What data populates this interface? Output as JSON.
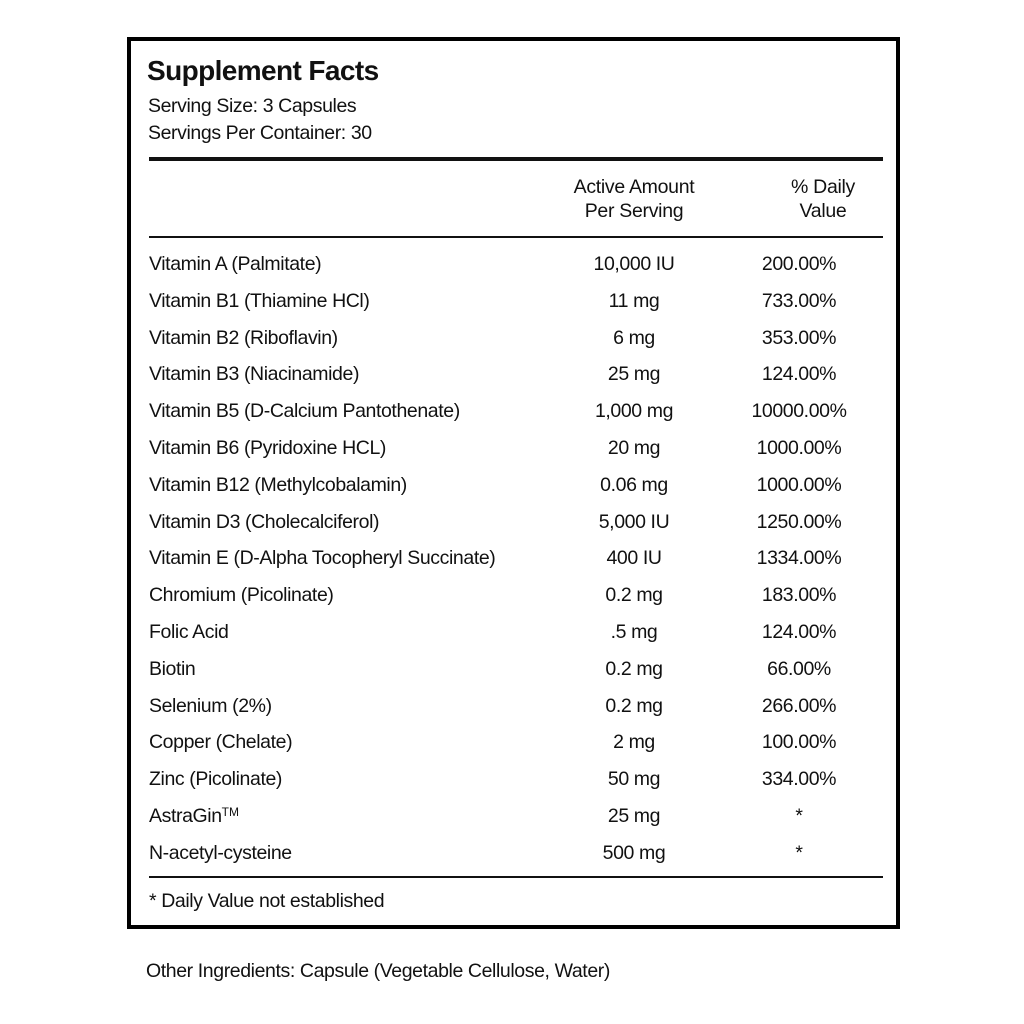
{
  "label": {
    "title": "Supplement Facts",
    "serving_size": "Serving Size:  3 Capsules",
    "servings_per_container": "Servings Per Container:  30",
    "columns": {
      "amount_line1": "Active Amount",
      "amount_line2": "Per Serving",
      "dv_line1": "% Daily",
      "dv_line2": "Value"
    },
    "rows": [
      {
        "name": "Vitamin A (Palmitate)",
        "amount": "10,000 IU",
        "dv": "200.00%"
      },
      {
        "name": "Vitamin B1 (Thiamine HCl)",
        "amount": "11 mg",
        "dv": "733.00%"
      },
      {
        "name": "Vitamin B2 (Riboflavin)",
        "amount": "6 mg",
        "dv": "353.00%"
      },
      {
        "name": "Vitamin B3 (Niacinamide)",
        "amount": "25 mg",
        "dv": "124.00%"
      },
      {
        "name": "Vitamin B5 (D-Calcium Pantothenate)",
        "amount": "1,000 mg",
        "dv": "10000.00%"
      },
      {
        "name": "Vitamin B6 (Pyridoxine HCL)",
        "amount": "20 mg",
        "dv": "1000.00%"
      },
      {
        "name": "Vitamin B12 (Methylcobalamin)",
        "amount": "0.06 mg",
        "dv": "1000.00%"
      },
      {
        "name": "Vitamin D3 (Cholecalciferol)",
        "amount": "5,000 IU",
        "dv": "1250.00%"
      },
      {
        "name": "Vitamin E (D-Alpha Tocopheryl Succinate)",
        "amount": "400 IU",
        "dv": "1334.00%"
      },
      {
        "name": "Chromium (Picolinate)",
        "amount": "0.2 mg",
        "dv": "183.00%"
      },
      {
        "name": "Folic Acid",
        "amount": ".5 mg",
        "dv": "124.00%"
      },
      {
        "name": "Biotin",
        "amount": "0.2 mg",
        "dv": "66.00%"
      },
      {
        "name": "Selenium (2%)",
        "amount": "0.2 mg",
        "dv": "266.00%"
      },
      {
        "name": "Copper (Chelate)",
        "amount": "2 mg",
        "dv": "100.00%"
      },
      {
        "name": "Zinc (Picolinate)",
        "amount": "50 mg",
        "dv": "334.00%"
      },
      {
        "name": "AstraGin",
        "trademark": "TM",
        "amount": "25 mg",
        "dv": "*"
      },
      {
        "name": "N-acetyl-cysteine",
        "amount": "500 mg",
        "dv": "*"
      }
    ],
    "footnote": "* Daily Value not established"
  },
  "other_ingredients": "Other Ingredients:  Capsule (Vegetable Cellulose, Water)"
}
